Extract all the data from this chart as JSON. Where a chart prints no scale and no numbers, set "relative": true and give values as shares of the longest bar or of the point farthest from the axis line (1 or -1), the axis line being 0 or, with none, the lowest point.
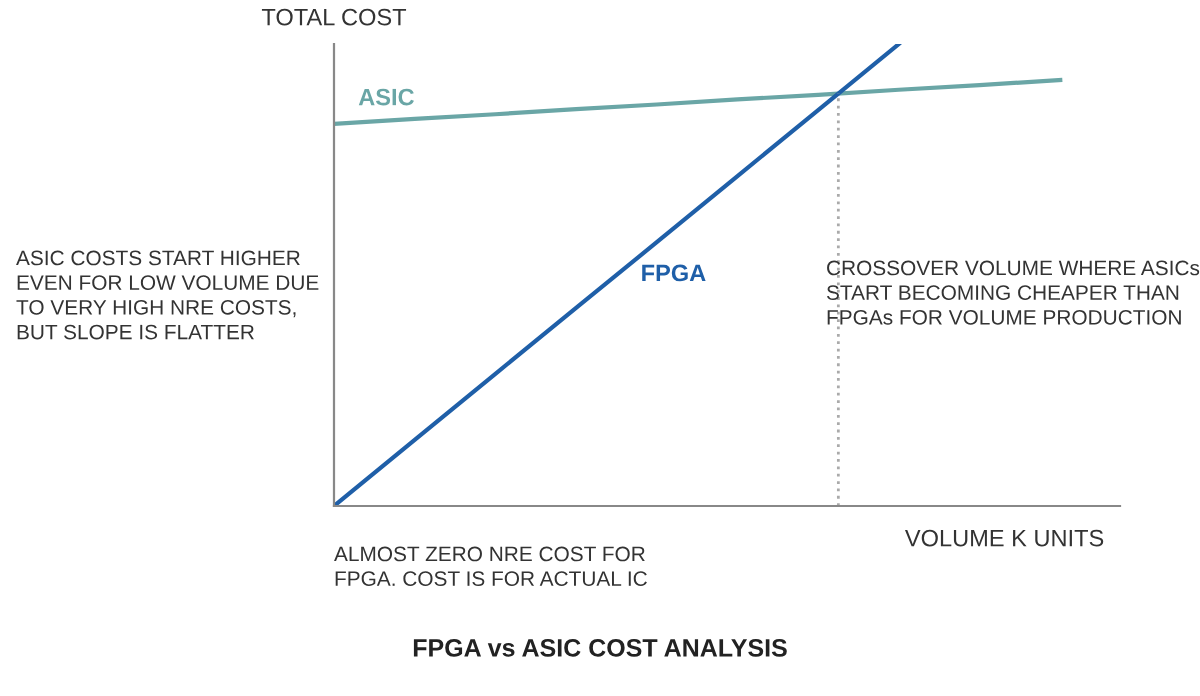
{
  "chart_data": {
    "type": "line",
    "relative": true,
    "title": "FPGA vs ASIC COST ANALYSIS",
    "xlabel": "VOLUME K UNITS",
    "ylabel": "TOTAL COST",
    "categories": [
      null,
      null,
      null,
      null,
      null,
      null,
      null,
      null,
      null,
      null
    ],
    "series": [
      {
        "name": "ASIC",
        "color": "#6aa6a6",
        "values": [
          0.827,
          0.838,
          0.848,
          0.859,
          0.869,
          0.88,
          0.89,
          0.901,
          0.911,
          0.922
        ]
      },
      {
        "name": "FPGA",
        "color": "#1f5fa8",
        "values": [
          0,
          0.143,
          0.286,
          0.429,
          0.571,
          0.714,
          0.857,
          1,
          null,
          null
        ]
      }
    ],
    "annotations": [
      "ASIC COSTS START HIGHER\nEVEN FOR LOW VOLUME DUE\nTO VERY HIGH NRE COSTS,\nBUT SLOPE IS FLATTER",
      "CROSSOVER VOLUME WHERE ASICs\nSTART BECOMING CHEAPER THAN\nFPGAs FOR VOLUME PRODUCTION",
      "ALMOST ZERO NRE COST FOR\nFPGA. COST IS FOR ACTUAL IC"
    ]
  }
}
